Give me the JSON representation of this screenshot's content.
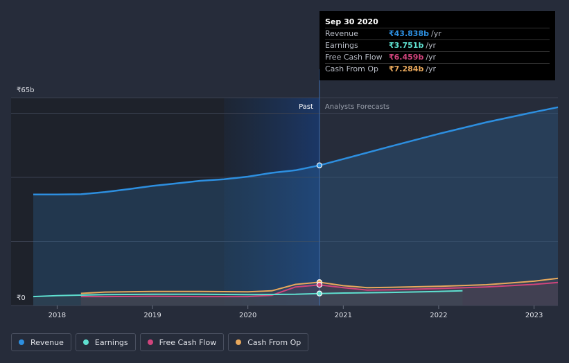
{
  "chart_data": {
    "type": "line",
    "y_axis": {
      "top_label": "₹65b",
      "bottom_label": "₹0",
      "ylim": [
        0,
        65
      ]
    },
    "x_axis": {
      "ticks": [
        "2018",
        "2019",
        "2020",
        "2021",
        "2022",
        "2023"
      ],
      "xlim": [
        2017.75,
        2023.25
      ]
    },
    "past_label": "Past",
    "forecast_label": "Analysts Forecasts",
    "divider_x": 2020.75,
    "series": [
      {
        "name": "Revenue",
        "color": "#2d8fe0",
        "x": [
          2017.75,
          2018.0,
          2018.25,
          2018.5,
          2018.75,
          2019.0,
          2019.25,
          2019.5,
          2019.75,
          2020.0,
          2020.25,
          2020.5,
          2020.75,
          2021.0,
          2021.5,
          2022.0,
          2022.5,
          2023.0,
          2023.25
        ],
        "values": [
          34.7,
          34.7,
          34.8,
          35.5,
          36.4,
          37.4,
          38.2,
          39.0,
          39.5,
          40.3,
          41.5,
          42.3,
          43.838,
          45.8,
          49.8,
          53.7,
          57.3,
          60.5,
          62.0
        ]
      },
      {
        "name": "Earnings",
        "color": "#5fe0d0",
        "x": [
          2017.75,
          2018.0,
          2018.5,
          2019.0,
          2019.5,
          2020.0,
          2020.5,
          2020.75,
          2021.0,
          2021.5,
          2022.0,
          2022.25
        ],
        "values": [
          2.8,
          3.1,
          3.4,
          3.5,
          3.5,
          3.4,
          3.5,
          3.751,
          3.9,
          4.1,
          4.4,
          4.6
        ]
      },
      {
        "name": "Free Cash Flow",
        "color": "#d0447c",
        "x": [
          2018.25,
          2018.5,
          2019.0,
          2019.5,
          2020.0,
          2020.25,
          2020.5,
          2020.75,
          2021.0,
          2021.25,
          2021.5,
          2022.0,
          2022.5,
          2023.0,
          2023.25
        ],
        "values": [
          2.8,
          2.8,
          2.9,
          2.8,
          2.8,
          3.2,
          5.8,
          6.459,
          5.6,
          4.8,
          4.9,
          5.3,
          5.8,
          6.6,
          7.2
        ]
      },
      {
        "name": "Cash From Op",
        "color": "#e8a85c",
        "x": [
          2018.25,
          2018.5,
          2019.0,
          2019.5,
          2020.0,
          2020.25,
          2020.5,
          2020.75,
          2021.0,
          2021.25,
          2021.5,
          2022.0,
          2022.5,
          2023.0,
          2023.25
        ],
        "values": [
          3.8,
          4.2,
          4.4,
          4.4,
          4.3,
          4.6,
          6.6,
          7.284,
          6.2,
          5.6,
          5.7,
          6.0,
          6.5,
          7.6,
          8.5
        ]
      }
    ]
  },
  "tooltip": {
    "date": "Sep 30 2020",
    "rows": [
      {
        "label": "Revenue",
        "value": "₹43.838b",
        "unit": "/yr",
        "color": "#2d8fe0"
      },
      {
        "label": "Earnings",
        "value": "₹3.751b",
        "unit": "/yr",
        "color": "#5fe0d0"
      },
      {
        "label": "Free Cash Flow",
        "value": "₹6.459b",
        "unit": "/yr",
        "color": "#d0447c"
      },
      {
        "label": "Cash From Op",
        "value": "₹7.284b",
        "unit": "/yr",
        "color": "#e8a85c"
      }
    ]
  },
  "legend": [
    {
      "label": "Revenue",
      "color": "#2d8fe0"
    },
    {
      "label": "Earnings",
      "color": "#5fe0d0"
    },
    {
      "label": "Free Cash Flow",
      "color": "#d0447c"
    },
    {
      "label": "Cash From Op",
      "color": "#e8a85c"
    }
  ]
}
